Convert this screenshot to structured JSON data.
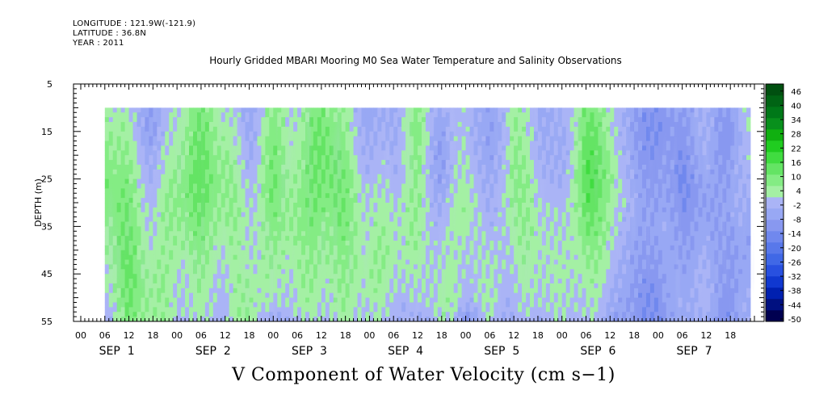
{
  "header": {
    "longitude": "LONGITUDE : 121.9W(-121.9)",
    "latitude": "LATITUDE : 36.8N",
    "year": "YEAR : 2011"
  },
  "chart_data": {
    "type": "heatmap",
    "title": "Hourly Gridded MBARI Mooring M0 Sea Water Temperature and Salinity Observations",
    "xlabel": "V Component of Water Velocity (cm s−1)",
    "ylabel": "DEPTH (m)",
    "ylim": [
      5,
      55
    ],
    "y_reversed": true,
    "y_ticks": [
      5,
      15,
      25,
      35,
      45,
      55
    ],
    "data_depth_range": [
      10,
      55
    ],
    "x_hour_ticks": [
      "00",
      "06",
      "12",
      "18",
      "00",
      "06",
      "12",
      "18",
      "00",
      "06",
      "12",
      "18",
      "00",
      "06",
      "12",
      "18",
      "00",
      "06",
      "12",
      "18",
      "00",
      "06",
      "12",
      "18",
      "00",
      "06",
      "12",
      "18"
    ],
    "x_day_labels": [
      "SEP  1",
      "SEP  2",
      "SEP  3",
      "SEP  4",
      "SEP  5",
      "SEP  6",
      "SEP  7"
    ],
    "data_time_range_hours": [
      6,
      167
    ],
    "colorbar": {
      "labels": [
        "46",
        "40",
        "34",
        "28",
        "22",
        "16",
        "10",
        "4",
        "-2",
        "-8",
        "-14",
        "-20",
        "-26",
        "-32",
        "-38",
        "-44",
        "-50"
      ],
      "min": -50,
      "max": 49,
      "step": 3,
      "colors": [
        "#000050",
        "#001080",
        "#0020b0",
        "#1038d0",
        "#2850e0",
        "#4068e6",
        "#5878ea",
        "#7088ee",
        "#8898f0",
        "#98a8f4",
        "#aab4f6",
        "#a4f0a4",
        "#84ec84",
        "#64e464",
        "#40dc40",
        "#20cc20",
        "#10b010",
        "#08901c",
        "#007818",
        "#006414",
        "#005010"
      ]
    },
    "velocity_grid": {
      "depths": [
        10,
        15,
        20,
        25,
        30,
        35,
        40,
        45,
        50,
        55
      ],
      "times": [
        6,
        12,
        18,
        24,
        30,
        36,
        42,
        48,
        54,
        60,
        66,
        72,
        78,
        84,
        90,
        96,
        102,
        108,
        114,
        120,
        126,
        132,
        138,
        144,
        150,
        156,
        162,
        167
      ],
      "values": [
        [
          6,
          2,
          -6,
          4,
          10,
          3,
          -4,
          8,
          2,
          12,
          4,
          -6,
          -3,
          8,
          -4,
          2,
          -8,
          6,
          -2,
          -4,
          12,
          4,
          -8,
          -10,
          -6,
          -2,
          -8,
          4
        ],
        [
          8,
          4,
          -8,
          5,
          12,
          5,
          -3,
          9,
          4,
          14,
          6,
          -4,
          -2,
          9,
          -6,
          3,
          -9,
          7,
          -1,
          -5,
          14,
          6,
          -9,
          -12,
          -8,
          -3,
          -10,
          3
        ],
        [
          10,
          6,
          -4,
          7,
          13,
          7,
          -2,
          10,
          5,
          15,
          8,
          -2,
          -1,
          8,
          -8,
          4,
          -8,
          8,
          0,
          -6,
          16,
          8,
          -8,
          -10,
          -10,
          -4,
          -9,
          2
        ],
        [
          12,
          8,
          -2,
          9,
          14,
          9,
          0,
          11,
          6,
          14,
          9,
          0,
          0,
          7,
          -6,
          6,
          -6,
          9,
          2,
          -4,
          17,
          9,
          -6,
          -8,
          -12,
          -6,
          -6,
          0
        ],
        [
          11,
          10,
          0,
          10,
          12,
          8,
          2,
          10,
          7,
          12,
          10,
          2,
          3,
          6,
          -3,
          7,
          -4,
          8,
          4,
          -2,
          15,
          8,
          -5,
          -6,
          -10,
          -8,
          -4,
          -3
        ],
        [
          9,
          11,
          2,
          8,
          10,
          6,
          3,
          8,
          8,
          10,
          9,
          4,
          5,
          5,
          0,
          6,
          -2,
          6,
          5,
          0,
          12,
          6,
          -6,
          -4,
          -8,
          -6,
          -6,
          -5
        ],
        [
          7,
          12,
          4,
          6,
          8,
          4,
          4,
          6,
          6,
          8,
          8,
          5,
          6,
          4,
          2,
          4,
          0,
          4,
          6,
          2,
          9,
          4,
          -8,
          -6,
          -6,
          -4,
          -8,
          -6
        ],
        [
          4,
          13,
          6,
          4,
          6,
          2,
          6,
          4,
          5,
          6,
          7,
          6,
          4,
          2,
          4,
          2,
          2,
          2,
          5,
          3,
          6,
          2,
          -9,
          -8,
          -4,
          -2,
          -9,
          -4
        ],
        [
          2,
          12,
          7,
          3,
          4,
          1,
          7,
          2,
          4,
          4,
          6,
          4,
          2,
          0,
          5,
          1,
          3,
          0,
          3,
          2,
          3,
          0,
          -10,
          -10,
          -3,
          -1,
          -10,
          -3
        ],
        [
          -4,
          10,
          6,
          2,
          2,
          0,
          8,
          -6,
          2,
          2,
          4,
          2,
          0,
          -4,
          6,
          -8,
          2,
          -2,
          1,
          0,
          2,
          -4,
          -10,
          -12,
          -2,
          -4,
          -10,
          -2
        ]
      ]
    }
  }
}
